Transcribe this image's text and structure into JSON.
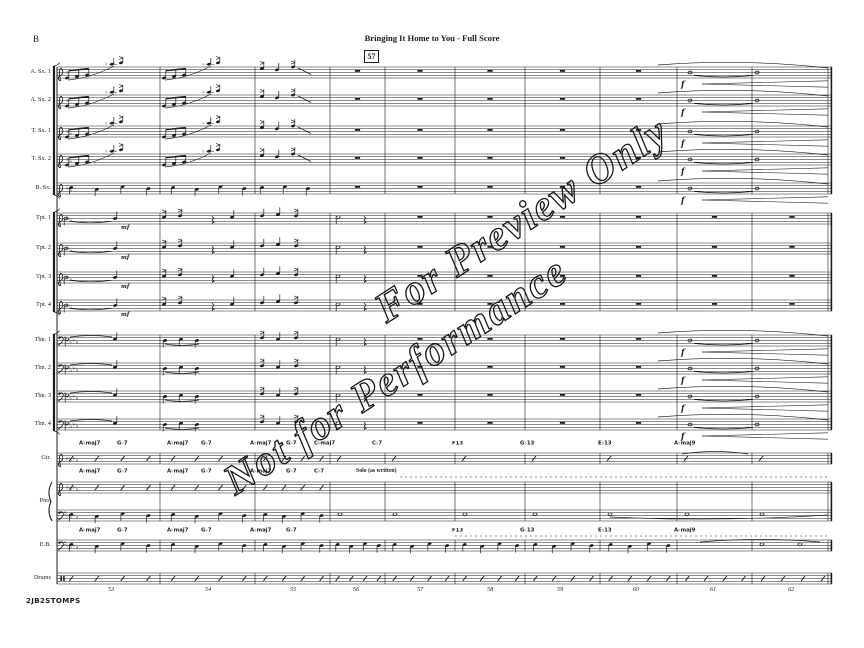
{
  "page": {
    "letter": "B",
    "title": "Bringing It Home to You - Full Score",
    "rehearsal_mark": "57",
    "footer_id": "2JB2STOMPS"
  },
  "watermark": {
    "line1": "For Preview Only",
    "line2": "Not for Performance"
  },
  "instruments": [
    "A. Sx. 1",
    "A. Sx. 2",
    "T. Sx. 1",
    "T. Sx. 2",
    "B. Sx.",
    "Tpt. 1",
    "Tpt. 2",
    "Tpt. 3",
    "Tpt. 4",
    "Tbn. 1",
    "Tbn. 2",
    "Tbn. 3",
    "Tbn. 4",
    "Gtr.",
    "Pno.",
    "E.B.",
    "Drums"
  ],
  "measure_numbers": [
    "53",
    "54",
    "55",
    "56",
    "57",
    "58",
    "59",
    "60",
    "61",
    "62"
  ],
  "chords": {
    "guitar": [
      "A♭maj7",
      "G♭7",
      "A♭maj7",
      "G♭7",
      "A♭maj7",
      "G♭7",
      "C♭maj7",
      "C♭7",
      "F13",
      "G♭13",
      "E♭13",
      "A♭maj9"
    ],
    "piano": [
      "A♭maj7",
      "G♭7",
      "A♭maj7",
      "G♭7",
      "A♭maj7",
      "G♭7",
      "C♭7"
    ],
    "bass": [
      "A♭maj7",
      "G♭7",
      "A♭maj7",
      "G♭7",
      "A♭maj7",
      "G♭7",
      "F13",
      "G♭13",
      "E♭13",
      "A♭maj9"
    ]
  },
  "texts": {
    "solo": "Solo (as written)"
  },
  "dynamics": {
    "forte": "f",
    "mezzo_forte": "mf"
  },
  "glyphs": {
    "flat": "♭",
    "sharp": "♯",
    "natural": "♮"
  },
  "colors": {
    "ink": "#1b1b1b",
    "background": "#ffffff"
  }
}
